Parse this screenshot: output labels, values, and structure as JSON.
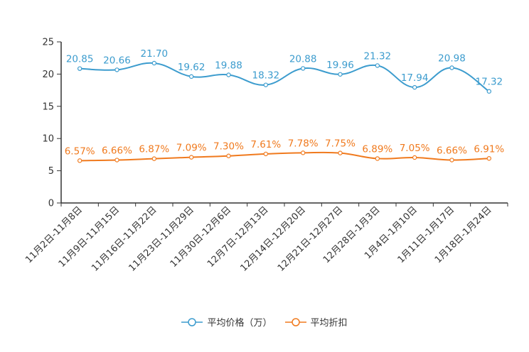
{
  "chart_data": {
    "type": "line",
    "categories": [
      "11月2日-11月8日",
      "11月9日-11月15日",
      "11月16日-11月22日",
      "11月23日-11月29日",
      "11月30日-12月6日",
      "12月7日-12月13日",
      "12月14日-12月20日",
      "12月21日-12月27日",
      "12月28日-1月3日",
      "1月4日-1月10日",
      "1月11日-1月17日",
      "1月18日-1月24日"
    ],
    "series": [
      {
        "name": "平均价格（万）",
        "values": [
          20.85,
          20.66,
          21.7,
          19.62,
          19.88,
          18.32,
          20.88,
          19.96,
          21.32,
          17.94,
          20.98,
          17.32
        ],
        "labels": [
          "20.85",
          "20.66",
          "21.70",
          "19.62",
          "19.88",
          "18.32",
          "20.88",
          "19.96",
          "21.32",
          "17.94",
          "20.98",
          "17.32"
        ],
        "color": "#3c9cce"
      },
      {
        "name": "平均折扣",
        "values": [
          6.57,
          6.66,
          6.87,
          7.09,
          7.3,
          7.61,
          7.78,
          7.75,
          6.89,
          7.05,
          6.66,
          6.91
        ],
        "labels": [
          "6.57%",
          "6.66%",
          "6.87%",
          "7.09%",
          "7.30%",
          "7.61%",
          "7.78%",
          "7.75%",
          "6.89%",
          "7.05%",
          "6.66%",
          "6.91%"
        ],
        "color": "#f07a1e"
      }
    ],
    "yticks": [
      "0",
      "5",
      "10",
      "15",
      "20",
      "25"
    ],
    "ylim": [
      0,
      25
    ],
    "title": "",
    "xlabel": "",
    "ylabel": "",
    "legend_position": "bottom",
    "axis_color": "#333333"
  }
}
